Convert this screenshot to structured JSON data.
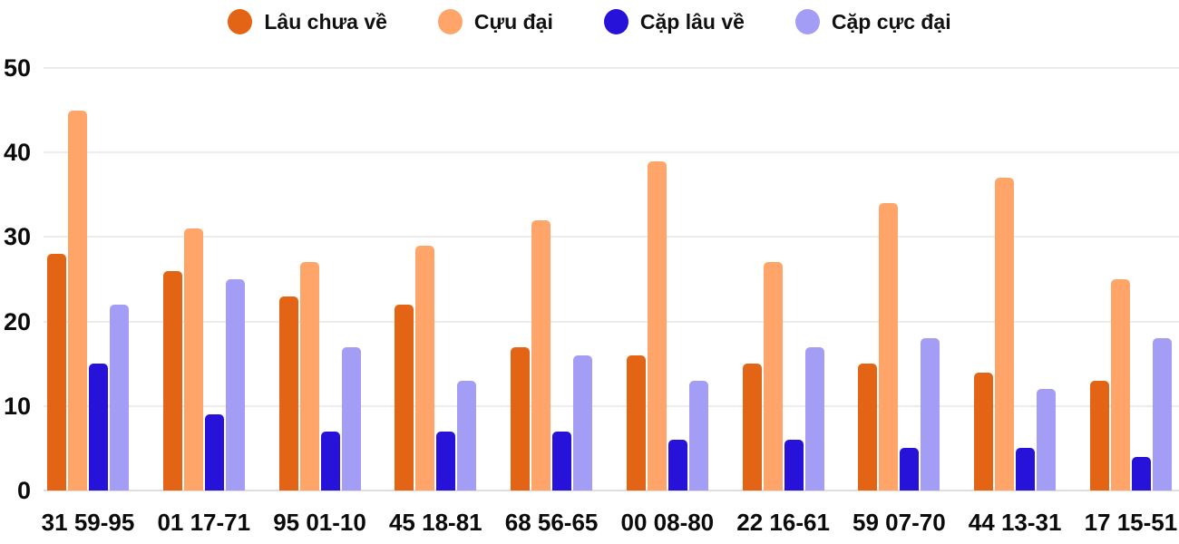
{
  "chart_data": {
    "type": "bar",
    "title": "",
    "xlabel": "",
    "ylabel": "",
    "ylim": [
      0,
      50
    ],
    "y_ticks": [
      0,
      10,
      20,
      30,
      40,
      50
    ],
    "grid": "horizontal",
    "legend_position": "top",
    "categories": [
      "31 59-95",
      "01 17-71",
      "95 01-10",
      "45 18-81",
      "68 56-65",
      "00 08-80",
      "22 16-61",
      "59 07-70",
      "44 13-31",
      "17 15-51"
    ],
    "series": [
      {
        "name": "Lâu chưa về",
        "color": "#e26414",
        "values": [
          28,
          26,
          23,
          22,
          17,
          16,
          15,
          15,
          14,
          13
        ]
      },
      {
        "name": "Cựu đại",
        "color": "#ffa56a",
        "values": [
          45,
          31,
          27,
          29,
          32,
          39,
          27,
          34,
          37,
          25
        ]
      },
      {
        "name": "Cặp lâu về",
        "color": "#2712d9",
        "values": [
          15,
          9,
          7,
          7,
          7,
          6,
          6,
          5,
          5,
          4
        ]
      },
      {
        "name": "Cặp cực đại",
        "color": "#a49df6",
        "values": [
          22,
          25,
          17,
          13,
          16,
          13,
          17,
          18,
          12,
          18
        ]
      }
    ]
  },
  "colors": {
    "gridline": "#ececec",
    "baseline": "#dedede",
    "tick_text": "#0b0b0b",
    "legend_text": "#111111"
  }
}
